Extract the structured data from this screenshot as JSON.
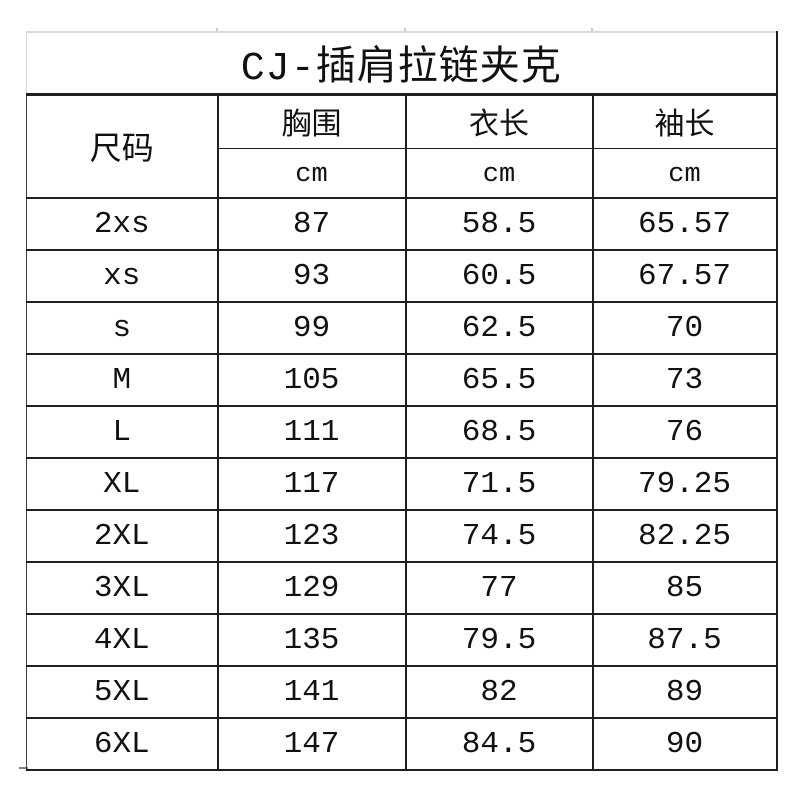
{
  "colors": {
    "bg": "#ffffff",
    "line-dark": "#1f1f1f",
    "line-light": "#d9d9d9",
    "line-left": "#3f3f3f",
    "text": "#111111"
  },
  "table": {
    "title": "CJ-插肩拉链夹克",
    "size_header": "尺码",
    "columns": [
      {
        "label": "胸围",
        "unit": "cm"
      },
      {
        "label": "衣长",
        "unit": "cm"
      },
      {
        "label": "袖长",
        "unit": "cm"
      }
    ],
    "rows": [
      {
        "size": "2xs",
        "chest": "87",
        "length": "58.5",
        "sleeve": "65.57"
      },
      {
        "size": "xs",
        "chest": "93",
        "length": "60.5",
        "sleeve": "67.57"
      },
      {
        "size": "s",
        "chest": "99",
        "length": "62.5",
        "sleeve": "70"
      },
      {
        "size": "M",
        "chest": "105",
        "length": "65.5",
        "sleeve": "73"
      },
      {
        "size": "L",
        "chest": "111",
        "length": "68.5",
        "sleeve": "76"
      },
      {
        "size": "XL",
        "chest": "117",
        "length": "71.5",
        "sleeve": "79.25"
      },
      {
        "size": "2XL",
        "chest": "123",
        "length": "74.5",
        "sleeve": "82.25"
      },
      {
        "size": "3XL",
        "chest": "129",
        "length": "77",
        "sleeve": "85"
      },
      {
        "size": "4XL",
        "chest": "135",
        "length": "79.5",
        "sleeve": "87.5"
      },
      {
        "size": "5XL",
        "chest": "141",
        "length": "82",
        "sleeve": "89"
      },
      {
        "size": "6XL",
        "chest": "147",
        "length": "84.5",
        "sleeve": "90"
      }
    ]
  },
  "chart_data": {
    "type": "table",
    "title": "CJ-插肩拉链夹克",
    "columns": [
      "尺码",
      "胸围 (cm)",
      "衣长 (cm)",
      "袖长 (cm)"
    ],
    "rows": [
      [
        "2xs",
        87,
        58.5,
        65.57
      ],
      [
        "xs",
        93,
        60.5,
        67.57
      ],
      [
        "s",
        99,
        62.5,
        70
      ],
      [
        "M",
        105,
        65.5,
        73
      ],
      [
        "L",
        111,
        68.5,
        76
      ],
      [
        "XL",
        117,
        71.5,
        79.25
      ],
      [
        "2XL",
        123,
        74.5,
        82.25
      ],
      [
        "3XL",
        129,
        77,
        85
      ],
      [
        "4XL",
        135,
        79.5,
        87.5
      ],
      [
        "5XL",
        141,
        82,
        89
      ],
      [
        "6XL",
        147,
        84.5,
        90
      ]
    ]
  }
}
